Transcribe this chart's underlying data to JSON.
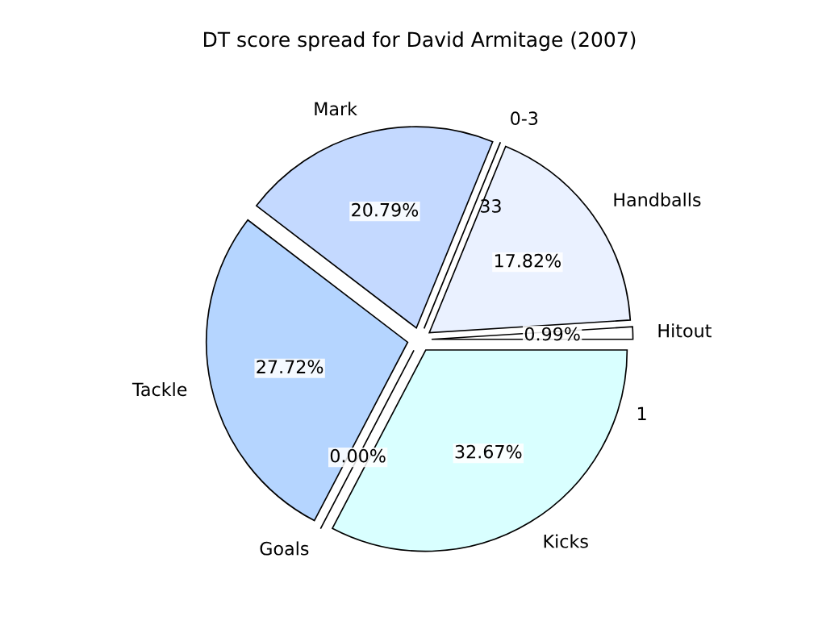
{
  "chart_data": {
    "type": "pie",
    "title": "DT score spread for David Armitage (2007)",
    "categories": [
      "Kicks",
      "Goals",
      "Tackle",
      "Mark",
      "0-3",
      "Handballs",
      "Hitout"
    ],
    "values": [
      32.67,
      0,
      27.72,
      20.79,
      0,
      17.82,
      0.99
    ],
    "colors": [
      "#d9ffff",
      "#eaf1ff",
      "#b5d5ff",
      "#c4d9ff",
      "#ffffff",
      "#eaf1ff",
      "#ffffff"
    ],
    "value_labels": [
      "32.67%",
      "0.00%",
      "27.72%",
      "20.79%",
      null,
      "17.82%",
      "0.99%"
    ],
    "annotations": [
      "33",
      "1"
    ],
    "legend": false
  }
}
